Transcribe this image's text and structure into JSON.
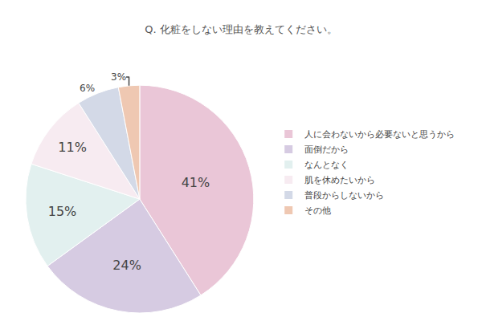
{
  "chart_data": {
    "type": "pie",
    "title": "Q. 化粧をしない理由を教えてください。",
    "categories": [
      "人に会わないから必要ないと思うから",
      "面倒だから",
      "なんとなく",
      "肌を休めたいから",
      "普段からしないから",
      "その他"
    ],
    "values": [
      41,
      24,
      15,
      11,
      6,
      3
    ],
    "value_labels": [
      "41%",
      "24%",
      "15%",
      "11%",
      "6%",
      "3%"
    ],
    "colors": [
      "#eac6d7",
      "#d6cbe2",
      "#e2f0ef",
      "#f7ebf1",
      "#d3d9e7",
      "#efc8b2"
    ],
    "data_labels": true,
    "legend": "right"
  }
}
